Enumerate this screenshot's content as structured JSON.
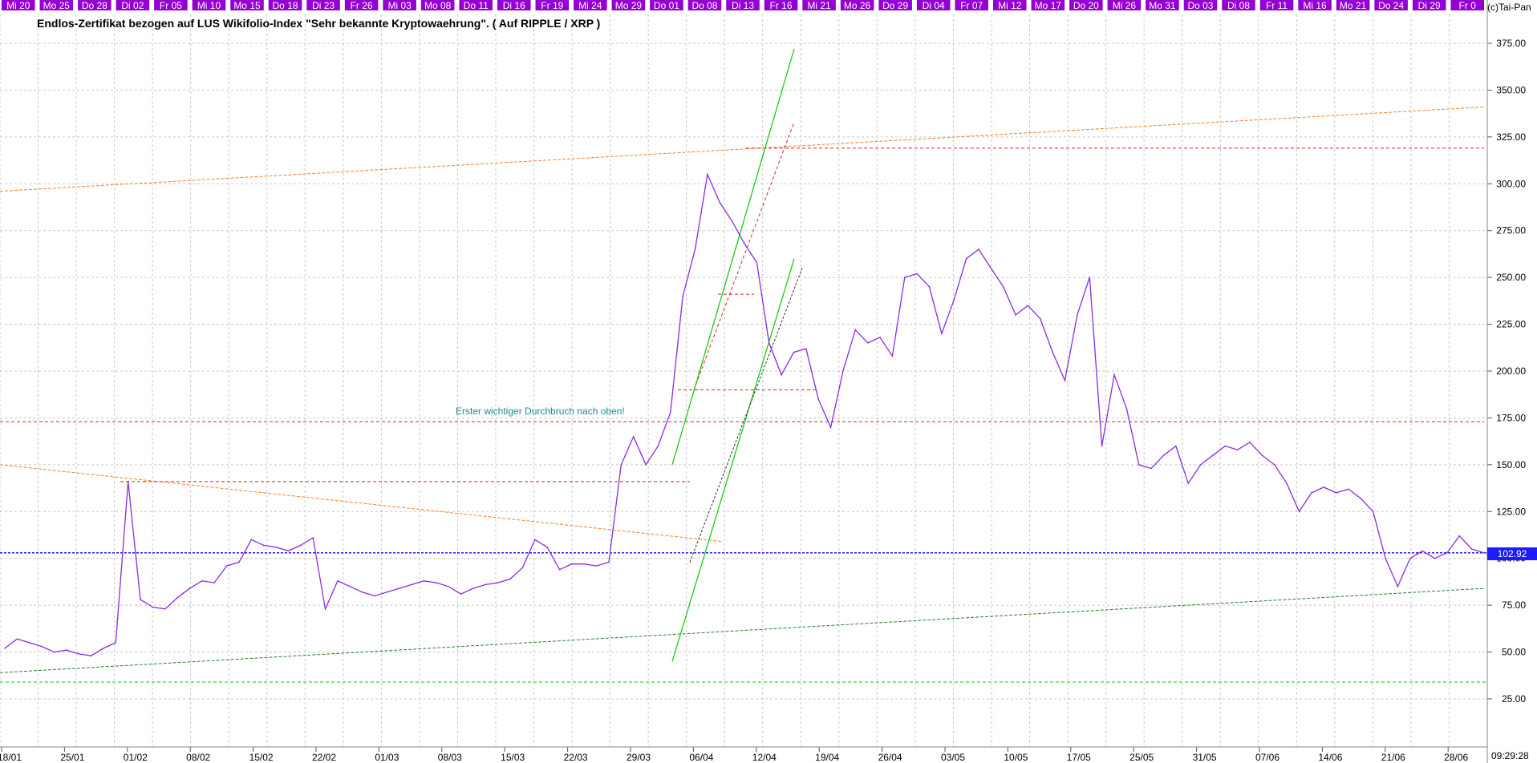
{
  "chart_title": "Endlos-Zertifikat bezogen auf LUS Wikifolio-Index \"Sehr bekannte Kryptowaehrung\". ( Auf RIPPLE / XRP )",
  "copyright": "(c)Tai-Pan",
  "annotation": "Erster wichtiger Durchbruch nach oben!",
  "last_price_label": "102.92",
  "clock": "09:29:28",
  "colors": {
    "price_line": "#8a2be2",
    "top_bar": "#9400d3",
    "grid": "#c8c8c8",
    "price_tag": "#1b1bff",
    "red_level": "#e02020",
    "green_line": "#00cc00",
    "orange_trend": "#ff7f27",
    "dark_green_trend": "#2e7d32",
    "annotation": "#1e8c8c"
  },
  "top_day_labels": [
    "Mi 20",
    "Mo 25",
    "Do 28",
    "Di 02",
    "Fr 05",
    "Mi 10",
    "Mo 15",
    "Do 18",
    "Di 23",
    "Fr 26",
    "Mi 03",
    "Mo 08",
    "Do 11",
    "Di 16",
    "Fr 19",
    "Mi 24",
    "Mo 29",
    "Do 01",
    "Do 08",
    "Di 13",
    "Fr 16",
    "Mi 21",
    "Mo 26",
    "Do 29",
    "Di 04",
    "Fr 07",
    "Mi 12",
    "Mo 17",
    "Do 20",
    "Mi 26",
    "Mo 31",
    "Do 03",
    "Di 08",
    "Fr 11",
    "Mi 16",
    "Mo 21",
    "Do 24",
    "Di 29",
    "Fr 0"
  ],
  "chart_data": {
    "type": "line",
    "title": "Endlos-Zertifikat bezogen auf LUS Wikifolio-Index \"Sehr bekannte Kryptowaehrung\". ( Auf RIPPLE / XRP )",
    "ylim": [
      25,
      375
    ],
    "y_ticks": [
      "375.00",
      "350.00",
      "325.00",
      "300.00",
      "275.00",
      "250.00",
      "225.00",
      "200.00",
      "175.00",
      "150.00",
      "125.00",
      "100.00",
      "75.00",
      "50.00",
      "25.00"
    ],
    "x_ticks": [
      "18/01",
      "25/01",
      "01/02",
      "08/02",
      "15/02",
      "22/02",
      "01/03",
      "08/03",
      "15/03",
      "22/03",
      "29/03",
      "06/04",
      "12/04",
      "19/04",
      "26/04",
      "03/05",
      "10/05",
      "17/05",
      "25/05",
      "31/05",
      "07/06",
      "14/06",
      "21/06",
      "28/06"
    ],
    "last_value": 102.92,
    "grid": true,
    "series": [
      {
        "values": [
          52,
          57,
          55,
          53,
          50,
          51,
          49,
          48,
          52,
          55,
          141,
          78,
          74,
          73,
          79,
          84,
          88,
          87,
          96,
          98,
          110,
          107,
          106,
          104,
          107,
          111,
          73,
          88,
          85,
          82,
          80,
          82,
          84,
          86,
          88,
          87,
          85,
          81,
          84,
          86,
          87,
          89,
          95,
          110,
          106,
          94,
          97,
          97,
          96,
          98,
          150,
          165,
          150,
          160,
          178,
          240,
          265,
          305,
          290,
          280,
          268,
          258,
          215,
          198,
          210,
          212,
          185,
          170,
          200,
          222,
          215,
          218,
          208,
          250,
          252,
          245,
          220,
          238,
          260,
          265,
          255,
          245,
          230,
          235,
          228,
          210,
          195,
          230,
          250,
          160,
          198,
          180,
          150,
          148,
          155,
          160,
          140,
          150,
          155,
          160,
          158,
          162,
          155,
          150,
          140,
          125,
          135,
          138,
          135,
          137,
          132,
          125,
          100,
          85,
          100,
          104,
          100,
          103,
          112,
          105,
          103
        ]
      }
    ]
  }
}
